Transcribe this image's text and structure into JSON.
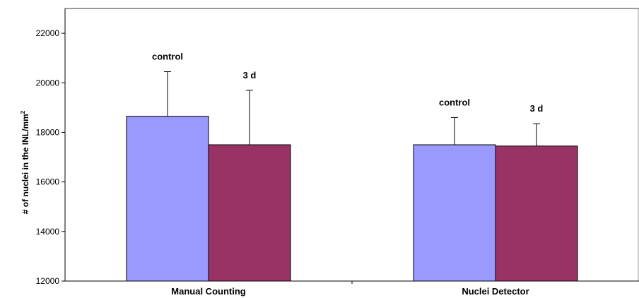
{
  "chart_data": {
    "type": "bar",
    "title": "",
    "xlabel": "",
    "ylabel": "# of nuclei in the INL/mm",
    "ylabel_superscript": "2",
    "ylim": [
      12000,
      23000
    ],
    "yticks": [
      12000,
      14000,
      16000,
      18000,
      20000,
      22000
    ],
    "ytick_labels": [
      "12000",
      "14000",
      "16000",
      "18000",
      "20000",
      "22000"
    ],
    "categories": [
      "Manual Counting",
      "Nuclei Detector"
    ],
    "series": [
      {
        "label": "control",
        "color": "#9999ff",
        "values": [
          18650,
          17500
        ],
        "errors": [
          1800,
          1100
        ]
      },
      {
        "label": "3 d",
        "color": "#993366",
        "values": [
          17500,
          17450
        ],
        "errors": [
          2200,
          900
        ]
      }
    ],
    "grid": false,
    "legend": "none"
  }
}
